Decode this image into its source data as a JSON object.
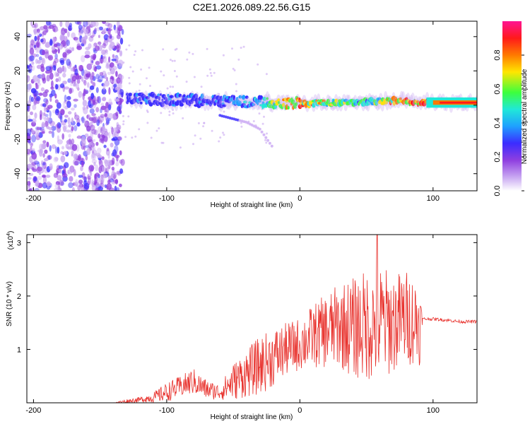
{
  "page": {
    "title": "C2E1.2026.089.22.56.G15"
  },
  "colors": {
    "snr_line": "#e8332e",
    "low_noise": "#8a2be2",
    "colormap": [
      "#f4eefc",
      "#c9a8f2",
      "#8f3fe0",
      "#3b2cff",
      "#1fa0ff",
      "#20e8d8",
      "#3dff3d",
      "#ffe600",
      "#ff7a00",
      "#ff1a1a",
      "#ff1493"
    ]
  },
  "chart_data": [
    {
      "type": "heatmap",
      "title": "C2E1.2026.089.22.56.G15",
      "xlabel": "Height of straight line (km)",
      "ylabel": "Frequency (Hz)",
      "xlim": [
        -205,
        133
      ],
      "ylim": [
        -50,
        49
      ],
      "xticks": [
        -200,
        -100,
        0,
        100
      ],
      "yticks": [
        -40,
        -20,
        0,
        20,
        40
      ],
      "colorbar": {
        "label": "Normalized spectral amplitude",
        "range": [
          0.0,
          1.0
        ],
        "ticks": [
          0.0,
          0.2,
          0.4,
          0.6,
          0.8
        ]
      },
      "noise_region_x": [
        -205,
        -133
      ],
      "signal_band": {
        "x": [
          -130,
          -100,
          -70,
          -50,
          -30,
          -10,
          10,
          30,
          50,
          70,
          90,
          110,
          133
        ],
        "center_hz": [
          4,
          3,
          2.5,
          2,
          2,
          1.5,
          1,
          1.5,
          2,
          2.5,
          2,
          1.5,
          1.5
        ],
        "peak_amplitude": [
          0.35,
          0.4,
          0.4,
          0.45,
          0.5,
          0.9,
          0.9,
          0.7,
          0.6,
          0.9,
          0.95,
          0.95,
          0.9
        ]
      },
      "branch": {
        "x": [
          -60,
          -40,
          -30,
          -20
        ],
        "hz": [
          -6,
          -10,
          -14,
          -25
        ]
      }
    },
    {
      "type": "line",
      "xlabel": "Height of straight line (km)",
      "ylabel": "SNR (10 * v/v)",
      "exponent_label": "(x10",
      "exponent_sup": "4",
      "xlim": [
        -205,
        133
      ],
      "ylim": [
        0,
        3.15
      ],
      "xticks": [
        -200,
        -100,
        0,
        100
      ],
      "yticks": [
        1,
        2,
        3
      ],
      "series": [
        {
          "name": "SNR",
          "x": [
            -205,
            -140,
            -130,
            -120,
            -110,
            -100,
            -90,
            -80,
            -70,
            -60,
            -50,
            -40,
            -30,
            -20,
            -10,
            0,
            10,
            20,
            30,
            40,
            50,
            60,
            70,
            80,
            90,
            92,
            100,
            110,
            120,
            133
          ],
          "mean": [
            0.0,
            0.0,
            0.03,
            0.06,
            0.1,
            0.2,
            0.3,
            0.4,
            0.25,
            0.2,
            0.4,
            0.55,
            0.7,
            0.85,
            1.0,
            1.1,
            1.25,
            1.35,
            1.45,
            1.4,
            1.45,
            1.5,
            1.5,
            1.6,
            1.5,
            1.57,
            1.57,
            1.55,
            1.52,
            1.52
          ],
          "spread": [
            0.0,
            0.0,
            0.04,
            0.05,
            0.1,
            0.18,
            0.2,
            0.25,
            0.18,
            0.15,
            0.35,
            0.45,
            0.55,
            0.55,
            0.5,
            0.5,
            0.6,
            0.7,
            0.8,
            0.95,
            1.05,
            1.1,
            0.95,
            0.9,
            0.8,
            0.03,
            0.03,
            0.03,
            0.03,
            0.03
          ],
          "peak": {
            "x": 58,
            "y": 3.2
          }
        }
      ]
    }
  ]
}
